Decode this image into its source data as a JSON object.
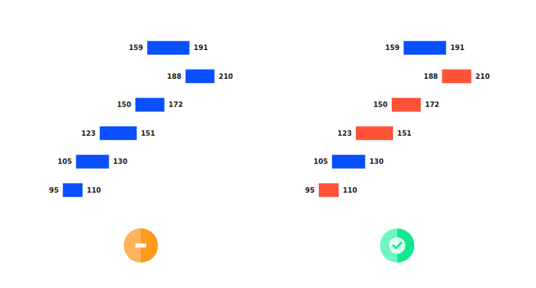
{
  "chart_data": [
    {
      "type": "bar",
      "orientation": "horizontal",
      "categories": [
        null,
        null,
        null,
        null,
        null,
        null
      ],
      "values": [
        [
          159,
          191
        ],
        [
          188,
          210
        ],
        [
          150,
          172
        ],
        [
          123,
          151
        ],
        [
          105,
          130
        ],
        [
          95,
          110
        ]
      ],
      "color": "#0a50ff",
      "xlim": [
        50,
        250
      ],
      "data_labels": true,
      "tick_labels": false,
      "grid": false
    },
    {
      "type": "bar",
      "orientation": "horizontal",
      "categories": [
        null,
        null,
        null,
        null,
        null,
        null
      ],
      "values": [
        [
          159,
          191
        ],
        [
          188,
          210
        ],
        [
          150,
          172
        ],
        [
          123,
          151
        ],
        [
          105,
          130
        ],
        [
          95,
          110
        ]
      ],
      "colors": [
        "#0a50ff",
        "#ff5236",
        "#ff5236",
        "#ff5236",
        "#0a50ff",
        "#ff5236"
      ],
      "xlim": [
        50,
        250
      ],
      "data_labels": true,
      "tick_labels": false,
      "grid": false
    }
  ]
}
